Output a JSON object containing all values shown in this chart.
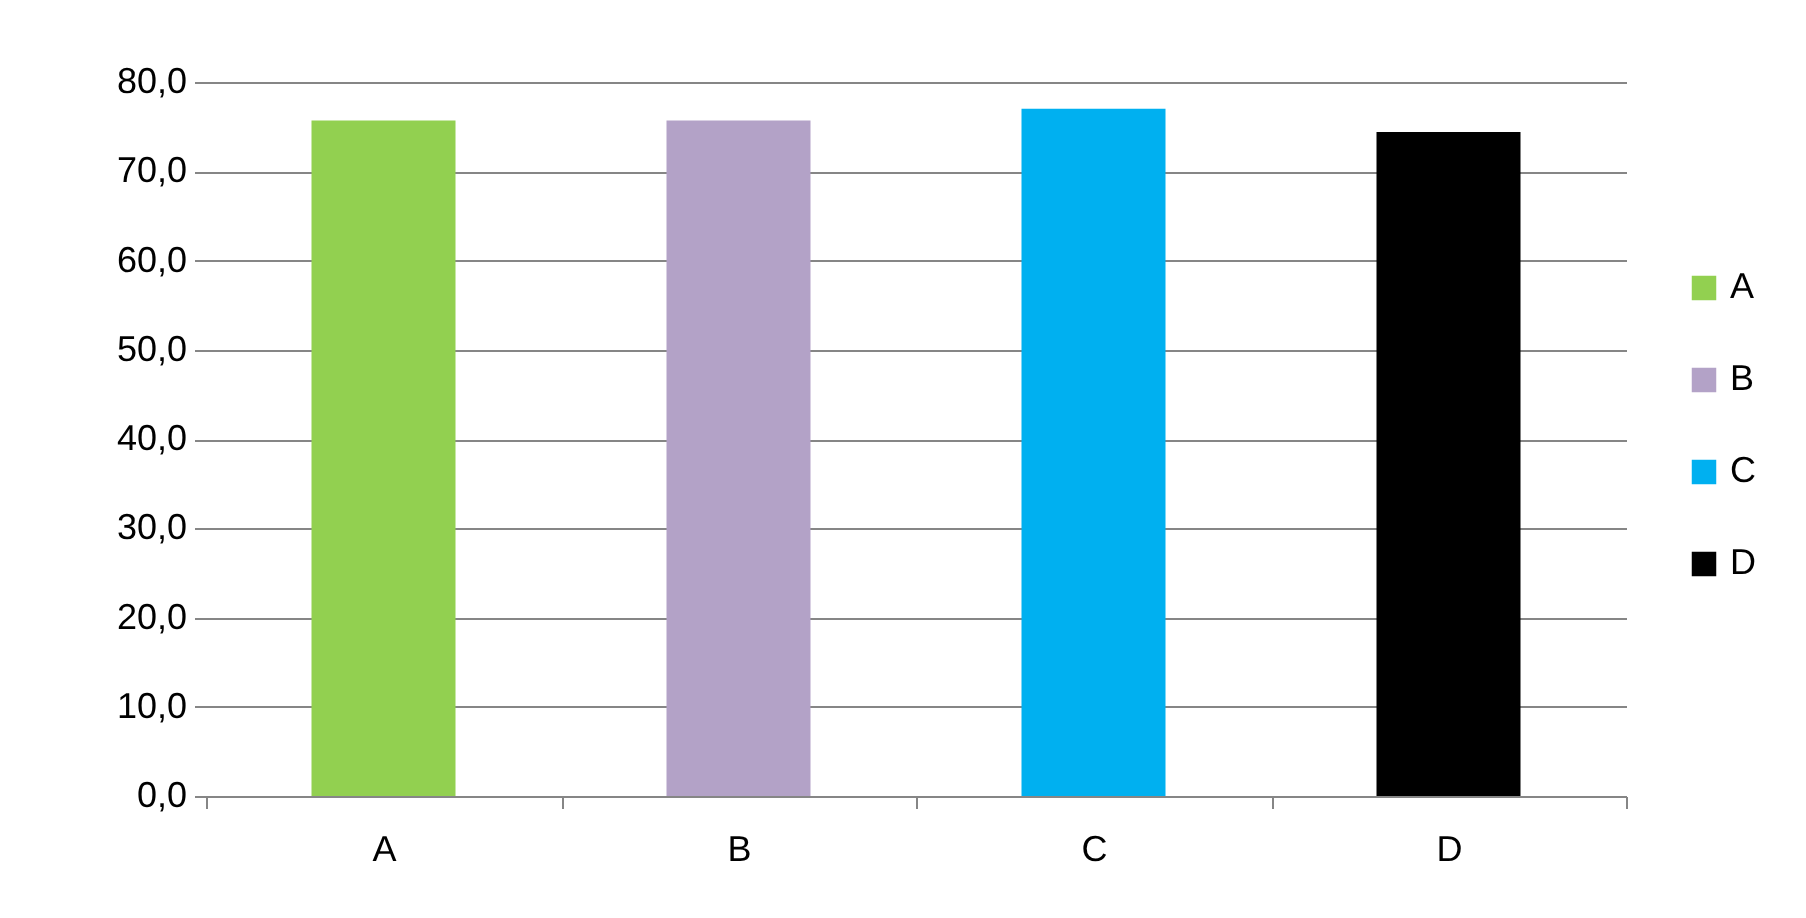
{
  "chart_data": {
    "type": "bar",
    "categories": [
      "A",
      "B",
      "C",
      "D"
    ],
    "series": [
      {
        "name": "A",
        "color": "#92d050",
        "values": [
          75.7,
          null,
          null,
          null
        ]
      },
      {
        "name": "B",
        "color": "#b3a2c7",
        "values": [
          null,
          75.7,
          null,
          null
        ]
      },
      {
        "name": "C",
        "color": "#00b0f0",
        "values": [
          null,
          null,
          77.0,
          null
        ]
      },
      {
        "name": "D",
        "color": "#000000",
        "values": [
          null,
          null,
          null,
          74.4
        ]
      }
    ],
    "ylim": [
      0,
      80
    ],
    "yticks": [
      {
        "value": 0,
        "label": "0,0"
      },
      {
        "value": 10,
        "label": "10,0"
      },
      {
        "value": 20,
        "label": "20,0"
      },
      {
        "value": 30,
        "label": "30,0"
      },
      {
        "value": 40,
        "label": "40,0"
      },
      {
        "value": 50,
        "label": "50,0"
      },
      {
        "value": 60,
        "label": "60,0"
      },
      {
        "value": 70,
        "label": "70,0"
      },
      {
        "value": 80,
        "label": "80,0"
      }
    ],
    "grid": "y",
    "legend": "right"
  }
}
